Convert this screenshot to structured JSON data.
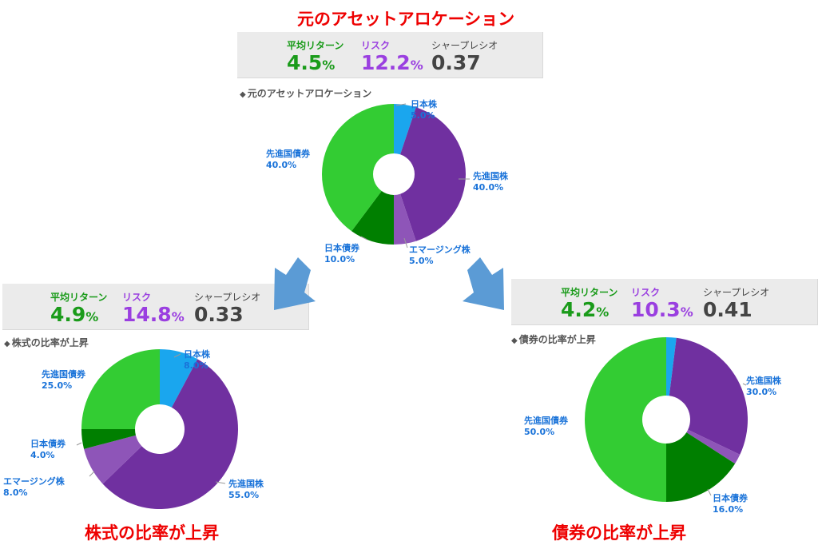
{
  "top": {
    "heading": "元のアセットアロケーション",
    "stats": {
      "return_label": "平均リターン",
      "return_value": "4.5",
      "return_unit": "%",
      "risk_label": "リスク",
      "risk_value": "12.2",
      "risk_unit": "%",
      "sharpe_label": "シャープレシオ",
      "sharpe_value": "0.37"
    },
    "caption": "元のアセットアロケーション"
  },
  "left": {
    "heading": "株式の比率が上昇",
    "stats": {
      "return_label": "平均リターン",
      "return_value": "4.9",
      "return_unit": "%",
      "risk_label": "リスク",
      "risk_value": "14.8",
      "risk_unit": "%",
      "sharpe_label": "シャープレシオ",
      "sharpe_value": "0.33"
    },
    "caption": "株式の比率が上昇"
  },
  "right": {
    "heading": "債券の比率が上昇",
    "stats": {
      "return_label": "平均リターン",
      "return_value": "4.2",
      "return_unit": "%",
      "risk_label": "リスク",
      "risk_value": "10.3",
      "risk_unit": "%",
      "sharpe_label": "シャープレシオ",
      "sharpe_value": "0.41"
    },
    "caption": "債券の比率が上昇"
  },
  "caption_marker": "◆",
  "colors": {
    "japan_stock": "#1aa6ee",
    "dev_stock": "#7030a0",
    "em_stock": "#8e55b8",
    "japan_bond": "#007f00",
    "dev_bond": "#33cc33",
    "arrow": "#5b9bd5",
    "label_text": "#1a73d9"
  },
  "chart_data": [
    {
      "type": "pie",
      "title": "元のアセットアロケーション",
      "categories": [
        "日本株",
        "先進国株",
        "エマージング株",
        "日本債券",
        "先進国債券"
      ],
      "values": [
        5.0,
        40.0,
        5.0,
        10.0,
        40.0
      ],
      "value_labels": [
        "5.0%",
        "40.0%",
        "5.0%",
        "10.0%",
        "40.0%"
      ],
      "unit": "%"
    },
    {
      "type": "pie",
      "title": "株式の比率が上昇",
      "categories": [
        "日本株",
        "先進国株",
        "エマージング株",
        "日本債券",
        "先進国債券"
      ],
      "values": [
        8.0,
        55.0,
        8.0,
        4.0,
        25.0
      ],
      "value_labels": [
        "8.0%",
        "55.0%",
        "8.0%",
        "4.0%",
        "25.0%"
      ],
      "unit": "%"
    },
    {
      "type": "pie",
      "title": "債券の比率が上昇",
      "categories": [
        "日本株",
        "先進国株",
        "エマージング株",
        "日本債券",
        "先進国債券"
      ],
      "values": [
        2.0,
        30.0,
        2.0,
        16.0,
        50.0
      ],
      "value_labels": [
        "",
        "30.0%",
        "",
        "16.0%",
        "50.0%"
      ],
      "unit": "%"
    }
  ]
}
